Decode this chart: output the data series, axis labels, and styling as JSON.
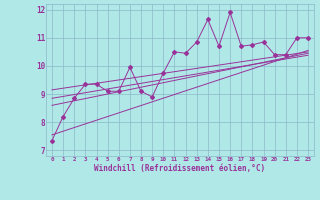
{
  "x_data": [
    0,
    1,
    2,
    3,
    4,
    5,
    6,
    7,
    8,
    9,
    10,
    11,
    12,
    13,
    14,
    15,
    16,
    17,
    18,
    19,
    20,
    21,
    22,
    23
  ],
  "y_scatter": [
    7.35,
    8.2,
    8.85,
    9.35,
    9.35,
    9.1,
    9.1,
    9.95,
    9.1,
    8.9,
    9.75,
    10.5,
    10.45,
    10.85,
    11.65,
    10.7,
    11.9,
    10.7,
    10.75,
    10.85,
    10.4,
    10.4,
    11.0,
    11.0
  ],
  "line_color": "#993399",
  "bg_color": "#b0e8e8",
  "grid_color": "#8ab8c8",
  "xlim": [
    -0.5,
    23.5
  ],
  "ylim": [
    6.8,
    12.2
  ],
  "yticks": [
    7,
    8,
    9,
    10,
    11,
    12
  ],
  "xticks": [
    0,
    1,
    2,
    3,
    4,
    5,
    6,
    7,
    8,
    9,
    10,
    11,
    12,
    13,
    14,
    15,
    16,
    17,
    18,
    19,
    20,
    21,
    22,
    23
  ],
  "xlabel": "Windchill (Refroidissement éolien,°C)",
  "regression_lines": [
    {
      "start_x": 0,
      "start_y": 7.55,
      "end_x": 23,
      "end_y": 10.55
    },
    {
      "start_x": 0,
      "start_y": 8.6,
      "end_x": 23,
      "end_y": 10.45
    },
    {
      "start_x": 0,
      "start_y": 8.85,
      "end_x": 23,
      "end_y": 10.38
    },
    {
      "start_x": 0,
      "start_y": 9.15,
      "end_x": 23,
      "end_y": 10.5
    }
  ]
}
